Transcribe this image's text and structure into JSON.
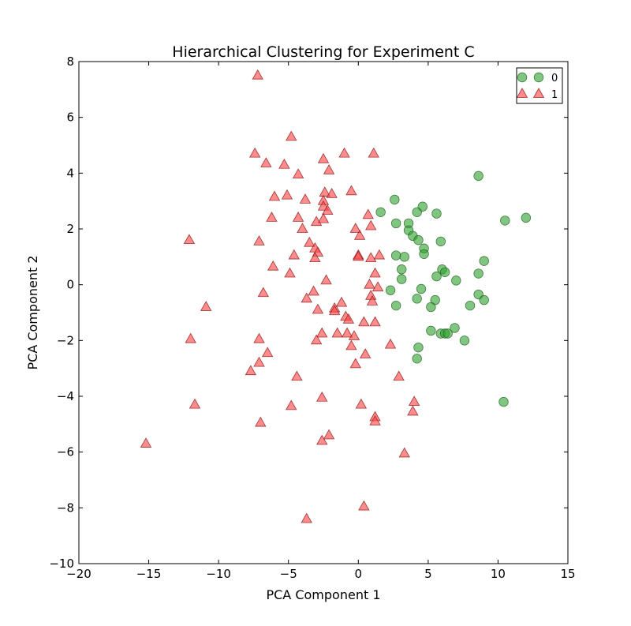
{
  "chart_data": {
    "type": "scatter",
    "title": "Hierarchical Clustering for Experiment C",
    "xlabel": "PCA Component 1",
    "ylabel": "PCA Component 2",
    "xlim": [
      -20,
      15
    ],
    "ylim": [
      -10,
      8
    ],
    "xticks": [
      -20,
      -15,
      -10,
      -5,
      0,
      5,
      10,
      15
    ],
    "yticks": [
      -10,
      -8,
      -6,
      -4,
      -2,
      0,
      2,
      4,
      6,
      8
    ],
    "grid": false,
    "legend_position": "top-right",
    "series": [
      {
        "name": "0",
        "marker": "circle",
        "color": "#2ca02c",
        "points": [
          [
            8.6,
            3.9
          ],
          [
            12.0,
            2.4
          ],
          [
            10.5,
            2.3
          ],
          [
            2.6,
            3.05
          ],
          [
            4.6,
            2.8
          ],
          [
            4.2,
            2.6
          ],
          [
            5.6,
            2.55
          ],
          [
            1.6,
            2.6
          ],
          [
            2.7,
            2.2
          ],
          [
            3.6,
            2.2
          ],
          [
            3.6,
            1.95
          ],
          [
            3.9,
            1.75
          ],
          [
            4.3,
            1.6
          ],
          [
            5.9,
            1.55
          ],
          [
            4.7,
            1.3
          ],
          [
            4.7,
            1.1
          ],
          [
            2.7,
            1.05
          ],
          [
            3.3,
            1.0
          ],
          [
            9.0,
            0.85
          ],
          [
            3.1,
            0.55
          ],
          [
            6.0,
            0.55
          ],
          [
            6.2,
            0.45
          ],
          [
            8.6,
            0.4
          ],
          [
            5.6,
            0.3
          ],
          [
            3.1,
            0.2
          ],
          [
            7.0,
            0.15
          ],
          [
            2.3,
            -0.2
          ],
          [
            4.5,
            -0.15
          ],
          [
            8.6,
            -0.35
          ],
          [
            4.2,
            -0.5
          ],
          [
            5.5,
            -0.55
          ],
          [
            9.0,
            -0.55
          ],
          [
            2.7,
            -0.75
          ],
          [
            5.2,
            -0.8
          ],
          [
            8.0,
            -0.75
          ],
          [
            5.2,
            -1.65
          ],
          [
            6.9,
            -1.55
          ],
          [
            5.9,
            -1.75
          ],
          [
            6.2,
            -1.75
          ],
          [
            6.4,
            -1.75
          ],
          [
            7.6,
            -2.0
          ],
          [
            4.3,
            -2.25
          ],
          [
            4.2,
            -2.65
          ],
          [
            10.4,
            -4.2
          ]
        ]
      },
      {
        "name": "1",
        "marker": "triangle",
        "color": "#ff4040",
        "points": [
          [
            -7.2,
            7.5
          ],
          [
            -4.8,
            5.3
          ],
          [
            -7.4,
            4.7
          ],
          [
            -6.6,
            4.35
          ],
          [
            -5.3,
            4.3
          ],
          [
            -1.0,
            4.7
          ],
          [
            1.1,
            4.7
          ],
          [
            -2.5,
            4.5
          ],
          [
            -4.3,
            3.95
          ],
          [
            -2.1,
            4.1
          ],
          [
            -5.1,
            3.2
          ],
          [
            -6.0,
            3.15
          ],
          [
            -3.8,
            3.05
          ],
          [
            -2.4,
            3.3
          ],
          [
            -1.9,
            3.25
          ],
          [
            -0.5,
            3.35
          ],
          [
            -2.5,
            3.0
          ],
          [
            -2.5,
            2.8
          ],
          [
            -2.2,
            2.65
          ],
          [
            -6.2,
            2.4
          ],
          [
            -4.3,
            2.4
          ],
          [
            -2.5,
            2.35
          ],
          [
            -3.0,
            2.25
          ],
          [
            0.7,
            2.5
          ],
          [
            -4.0,
            2.0
          ],
          [
            -0.2,
            2.0
          ],
          [
            0.1,
            1.75
          ],
          [
            0.9,
            2.1
          ],
          [
            -12.1,
            1.6
          ],
          [
            -7.1,
            1.55
          ],
          [
            -3.5,
            1.5
          ],
          [
            -3.1,
            1.3
          ],
          [
            -2.9,
            1.15
          ],
          [
            -4.6,
            1.05
          ],
          [
            -3.1,
            0.95
          ],
          [
            0.0,
            1.05
          ],
          [
            0.0,
            1.0
          ],
          [
            1.5,
            1.05
          ],
          [
            0.9,
            0.95
          ],
          [
            -6.1,
            0.65
          ],
          [
            -4.9,
            0.4
          ],
          [
            1.2,
            0.4
          ],
          [
            -2.3,
            0.15
          ],
          [
            0.8,
            0.0
          ],
          [
            1.4,
            -0.1
          ],
          [
            -6.8,
            -0.3
          ],
          [
            -3.2,
            -0.25
          ],
          [
            0.9,
            -0.4
          ],
          [
            -3.7,
            -0.5
          ],
          [
            1.0,
            -0.6
          ],
          [
            -1.2,
            -0.65
          ],
          [
            -10.9,
            -0.8
          ],
          [
            -1.7,
            -0.85
          ],
          [
            -1.7,
            -0.95
          ],
          [
            -2.9,
            -0.9
          ],
          [
            -0.9,
            -1.15
          ],
          [
            -0.7,
            -1.25
          ],
          [
            0.4,
            -1.35
          ],
          [
            1.2,
            -1.35
          ],
          [
            -2.6,
            -1.75
          ],
          [
            -1.5,
            -1.75
          ],
          [
            -0.8,
            -1.75
          ],
          [
            -0.3,
            -1.85
          ],
          [
            -12.0,
            -1.95
          ],
          [
            -7.1,
            -1.95
          ],
          [
            -3.0,
            -2.0
          ],
          [
            2.3,
            -2.15
          ],
          [
            -0.5,
            -2.2
          ],
          [
            -6.5,
            -2.45
          ],
          [
            0.5,
            -2.5
          ],
          [
            -7.1,
            -2.8
          ],
          [
            -0.2,
            -2.85
          ],
          [
            -7.7,
            -3.1
          ],
          [
            -4.4,
            -3.3
          ],
          [
            2.9,
            -3.3
          ],
          [
            -2.6,
            -4.05
          ],
          [
            4.0,
            -4.2
          ],
          [
            -11.7,
            -4.3
          ],
          [
            -4.8,
            -4.35
          ],
          [
            0.2,
            -4.3
          ],
          [
            3.9,
            -4.55
          ],
          [
            1.2,
            -4.75
          ],
          [
            1.2,
            -4.9
          ],
          [
            -7.0,
            -4.95
          ],
          [
            -2.1,
            -5.4
          ],
          [
            -2.6,
            -5.6
          ],
          [
            -15.2,
            -5.7
          ],
          [
            3.3,
            -6.05
          ],
          [
            0.4,
            -7.95
          ],
          [
            -3.7,
            -8.4
          ]
        ]
      }
    ]
  }
}
